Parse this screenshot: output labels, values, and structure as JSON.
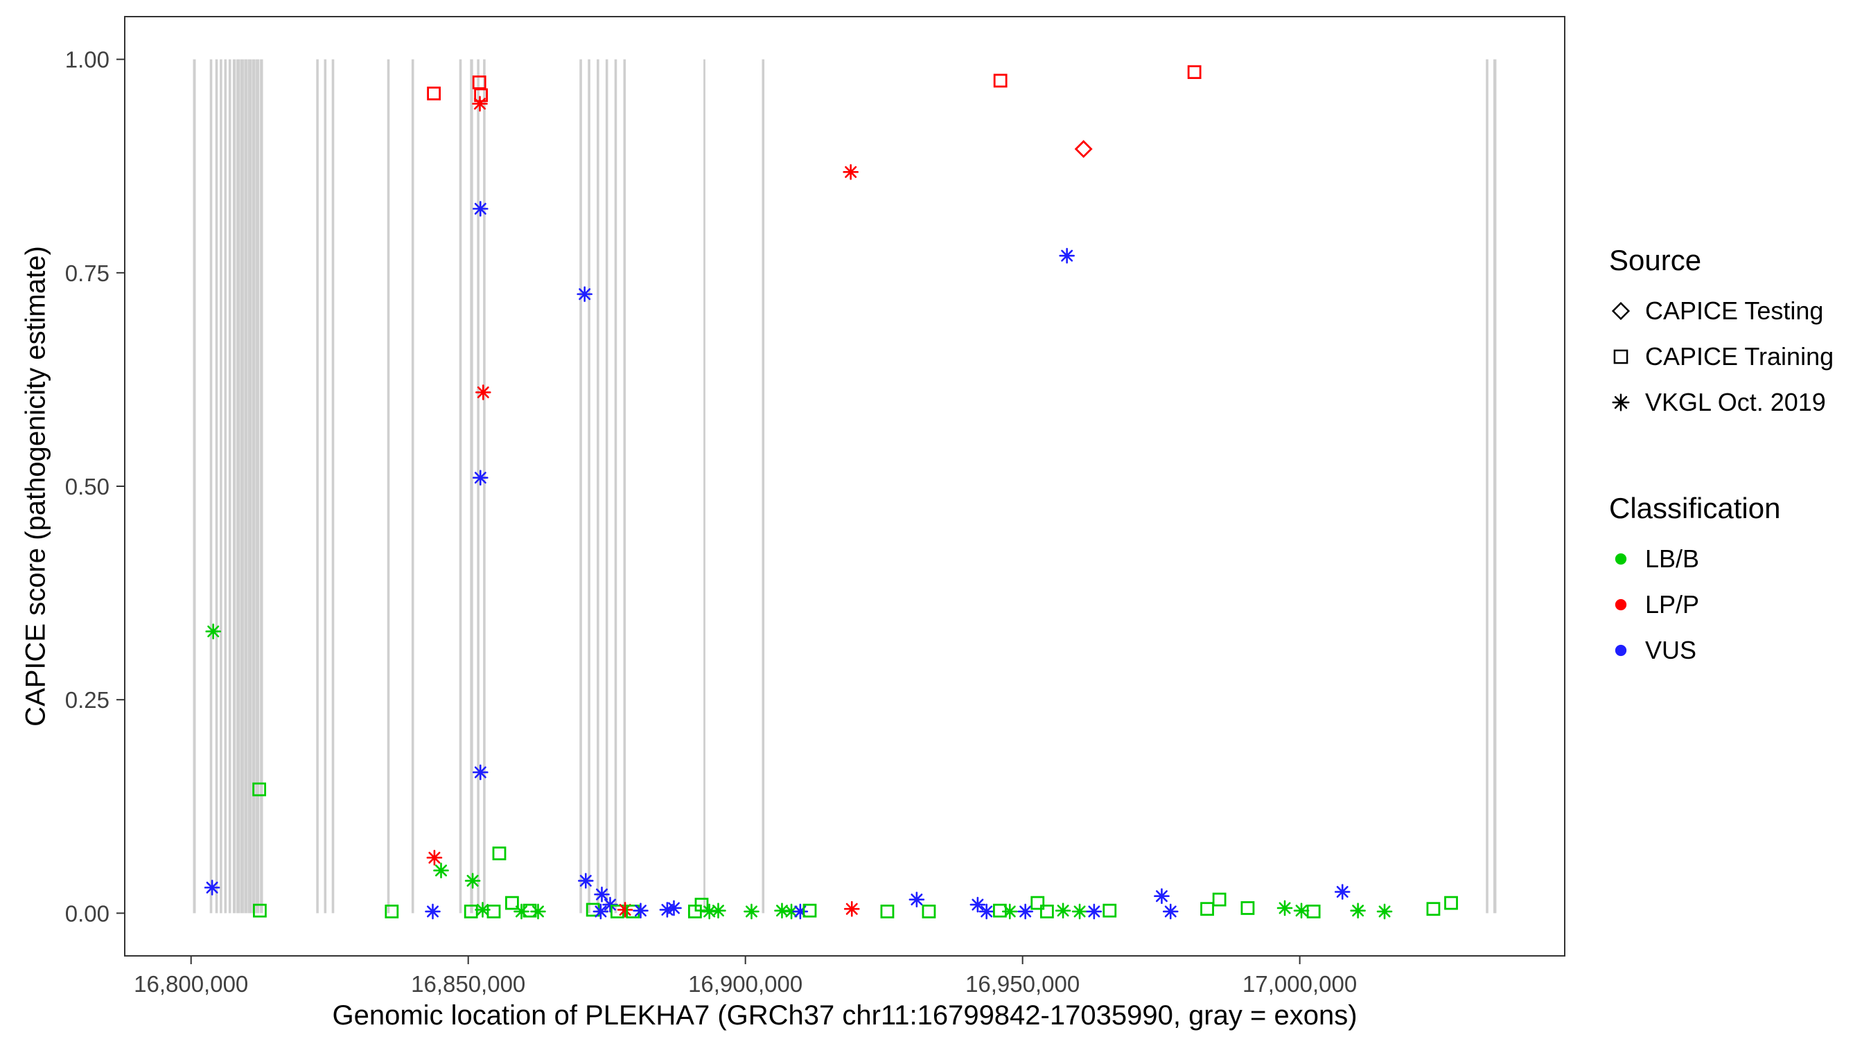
{
  "legend": {
    "source": {
      "title": "Source",
      "items": [
        {
          "label": "CAPICE Testing",
          "shape": "diamond"
        },
        {
          "label": "CAPICE Training",
          "shape": "square"
        },
        {
          "label": "VKGL Oct. 2019",
          "shape": "asterisk"
        }
      ]
    },
    "classification": {
      "title": "Classification",
      "items": [
        {
          "label": "LB/B",
          "color": "#00CD00"
        },
        {
          "label": "LP/P",
          "color": "#FF0000"
        },
        {
          "label": "VUS",
          "color": "#1F1FFF"
        }
      ]
    }
  },
  "chart_data": {
    "type": "scatter",
    "title": "",
    "xlabel": "Genomic location of PLEKHA7 (GRCh37 chr11:16799842-17035990, gray = exons)",
    "ylabel": "CAPICE score (pathogenicity estimate)",
    "x_domain": [
      16788035,
      17047797
    ],
    "y_domain": [
      -0.05,
      1.05
    ],
    "x_ticks": [
      {
        "v": 16800000,
        "label": "16,800,000"
      },
      {
        "v": 16850000,
        "label": "16,850,000"
      },
      {
        "v": 16900000,
        "label": "16,900,000"
      },
      {
        "v": 16950000,
        "label": "16,950,000"
      },
      {
        "v": 17000000,
        "label": "17,000,000"
      }
    ],
    "y_ticks": [
      {
        "v": 0.0,
        "label": "0.00"
      },
      {
        "v": 0.25,
        "label": "0.25"
      },
      {
        "v": 0.5,
        "label": "0.50"
      },
      {
        "v": 0.75,
        "label": "0.75"
      },
      {
        "v": 1.0,
        "label": "1.00"
      }
    ],
    "colors": {
      "LB/B": "#00CD00",
      "LP/P": "#FF0000",
      "VUS": "#1F1FFF"
    },
    "exon_color": "#808080",
    "exon_opacity": 0.38,
    "exons_format": [
      "genomic_center",
      "width_bp"
    ],
    "exons": [
      [
        16800600,
        500
      ],
      [
        16803600,
        450
      ],
      [
        16804600,
        450
      ],
      [
        16805400,
        450
      ],
      [
        16806200,
        450
      ],
      [
        16807000,
        450
      ],
      [
        16807800,
        550
      ],
      [
        16808500,
        650
      ],
      [
        16809200,
        650
      ],
      [
        16809900,
        650
      ],
      [
        16810600,
        650
      ],
      [
        16811300,
        650
      ],
      [
        16812000,
        650
      ],
      [
        16812700,
        550
      ],
      [
        16822800,
        450
      ],
      [
        16824200,
        450
      ],
      [
        16825600,
        450
      ],
      [
        16835600,
        450
      ],
      [
        16840000,
        450
      ],
      [
        16848600,
        450
      ],
      [
        16850600,
        550
      ],
      [
        16851800,
        450
      ],
      [
        16852900,
        450
      ],
      [
        16870300,
        450
      ],
      [
        16871800,
        450
      ],
      [
        16873400,
        450
      ],
      [
        16875000,
        450
      ],
      [
        16876600,
        450
      ],
      [
        16878200,
        450
      ],
      [
        16892600,
        350
      ],
      [
        16903200,
        450
      ],
      [
        17033800,
        450
      ],
      [
        17035200,
        550
      ]
    ],
    "shape_source_map": {
      "diamond": "CAPICE Testing",
      "square": "CAPICE Training",
      "asterisk": "VKGL Oct. 2019"
    },
    "points_format": [
      "genomic_position",
      "capice_score",
      "shape_source",
      "classification"
    ],
    "points": [
      [
        16843800,
        0.96,
        "square",
        "LP/P"
      ],
      [
        16852000,
        0.973,
        "square",
        "LP/P"
      ],
      [
        16852300,
        0.958,
        "square",
        "LP/P"
      ],
      [
        16852100,
        0.948,
        "asterisk",
        "LP/P"
      ],
      [
        16946000,
        0.975,
        "square",
        "LP/P"
      ],
      [
        16981000,
        0.985,
        "square",
        "LP/P"
      ],
      [
        16961000,
        0.895,
        "diamond",
        "LP/P"
      ],
      [
        16919000,
        0.868,
        "asterisk",
        "LP/P"
      ],
      [
        16852200,
        0.825,
        "asterisk",
        "VUS"
      ],
      [
        16958000,
        0.77,
        "asterisk",
        "VUS"
      ],
      [
        16871000,
        0.725,
        "asterisk",
        "VUS"
      ],
      [
        16852700,
        0.61,
        "asterisk",
        "LP/P"
      ],
      [
        16852200,
        0.51,
        "asterisk",
        "VUS"
      ],
      [
        16804000,
        0.33,
        "asterisk",
        "LB/B"
      ],
      [
        16852200,
        0.165,
        "asterisk",
        "VUS"
      ],
      [
        16812300,
        0.145,
        "square",
        "LB/B"
      ],
      [
        16855600,
        0.07,
        "square",
        "LB/B"
      ],
      [
        16843900,
        0.065,
        "asterisk",
        "LP/P"
      ],
      [
        16845100,
        0.05,
        "asterisk",
        "LB/B"
      ],
      [
        16850800,
        0.038,
        "asterisk",
        "LB/B"
      ],
      [
        16803800,
        0.03,
        "asterisk",
        "VUS"
      ],
      [
        16871200,
        0.038,
        "asterisk",
        "VUS"
      ],
      [
        16874100,
        0.022,
        "asterisk",
        "VUS"
      ],
      [
        16875600,
        0.01,
        "asterisk",
        "VUS"
      ],
      [
        16812400,
        0.003,
        "square",
        "LB/B"
      ],
      [
        16836200,
        0.002,
        "square",
        "LB/B"
      ],
      [
        16843600,
        0.002,
        "asterisk",
        "VUS"
      ],
      [
        16850500,
        0.002,
        "square",
        "LB/B"
      ],
      [
        16852600,
        0.004,
        "asterisk",
        "LB/B"
      ],
      [
        16854600,
        0.002,
        "square",
        "LB/B"
      ],
      [
        16857900,
        0.012,
        "square",
        "LB/B"
      ],
      [
        16859600,
        0.002,
        "asterisk",
        "LB/B"
      ],
      [
        16861100,
        0.003,
        "square",
        "LB/B"
      ],
      [
        16862600,
        0.002,
        "asterisk",
        "LB/B"
      ],
      [
        16872500,
        0.004,
        "square",
        "LB/B"
      ],
      [
        16873900,
        0.002,
        "asterisk",
        "VUS"
      ],
      [
        16876900,
        0.002,
        "square",
        "LB/B"
      ],
      [
        16878300,
        0.004,
        "asterisk",
        "LP/P"
      ],
      [
        16879700,
        0.002,
        "square",
        "LB/B"
      ],
      [
        16881100,
        0.003,
        "asterisk",
        "VUS"
      ],
      [
        16885900,
        0.004,
        "asterisk",
        "VUS"
      ],
      [
        16887100,
        0.006,
        "asterisk",
        "VUS"
      ],
      [
        16890900,
        0.002,
        "square",
        "LB/B"
      ],
      [
        16892100,
        0.01,
        "square",
        "LB/B"
      ],
      [
        16893500,
        0.002,
        "asterisk",
        "LB/B"
      ],
      [
        16895100,
        0.003,
        "asterisk",
        "LB/B"
      ],
      [
        16901100,
        0.002,
        "asterisk",
        "LB/B"
      ],
      [
        16906600,
        0.003,
        "asterisk",
        "LB/B"
      ],
      [
        16908300,
        0.002,
        "asterisk",
        "LB/B"
      ],
      [
        16909900,
        0.002,
        "asterisk",
        "VUS"
      ],
      [
        16911600,
        0.003,
        "square",
        "LB/B"
      ],
      [
        16919200,
        0.005,
        "asterisk",
        "LP/P"
      ],
      [
        16925600,
        0.002,
        "square",
        "LB/B"
      ],
      [
        16930900,
        0.016,
        "asterisk",
        "VUS"
      ],
      [
        16933100,
        0.002,
        "square",
        "LB/B"
      ],
      [
        16941900,
        0.01,
        "asterisk",
        "VUS"
      ],
      [
        16943500,
        0.002,
        "asterisk",
        "VUS"
      ],
      [
        16945900,
        0.003,
        "square",
        "LB/B"
      ],
      [
        16947700,
        0.002,
        "asterisk",
        "LB/B"
      ],
      [
        16950500,
        0.002,
        "asterisk",
        "VUS"
      ],
      [
        16952700,
        0.012,
        "square",
        "LB/B"
      ],
      [
        16954400,
        0.002,
        "square",
        "LB/B"
      ],
      [
        16957300,
        0.003,
        "asterisk",
        "LB/B"
      ],
      [
        16960300,
        0.002,
        "asterisk",
        "LB/B"
      ],
      [
        16962900,
        0.002,
        "asterisk",
        "VUS"
      ],
      [
        16965700,
        0.003,
        "square",
        "LB/B"
      ],
      [
        16975100,
        0.02,
        "asterisk",
        "VUS"
      ],
      [
        16976700,
        0.002,
        "asterisk",
        "VUS"
      ],
      [
        16983300,
        0.005,
        "square",
        "LB/B"
      ],
      [
        16985500,
        0.016,
        "square",
        "LB/B"
      ],
      [
        16990600,
        0.006,
        "square",
        "LB/B"
      ],
      [
        16997300,
        0.006,
        "asterisk",
        "LB/B"
      ],
      [
        17000300,
        0.003,
        "asterisk",
        "LB/B"
      ],
      [
        17002500,
        0.002,
        "square",
        "LB/B"
      ],
      [
        17007700,
        0.025,
        "asterisk",
        "VUS"
      ],
      [
        17010500,
        0.003,
        "asterisk",
        "LB/B"
      ],
      [
        17015300,
        0.002,
        "asterisk",
        "LB/B"
      ],
      [
        17024100,
        0.005,
        "square",
        "LB/B"
      ],
      [
        17027300,
        0.012,
        "square",
        "LB/B"
      ]
    ]
  }
}
